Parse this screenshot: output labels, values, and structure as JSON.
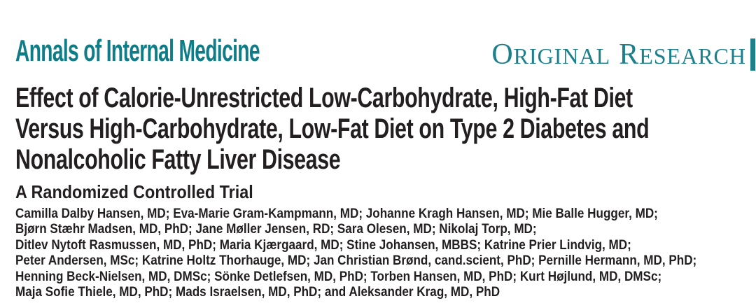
{
  "journal": {
    "name": "Annals of Internal Medicine",
    "section_label": {
      "word1_initial": "O",
      "word1_rest": "RIGINAL",
      "word2_initial": "R",
      "word2_rest": "ESEARCH"
    }
  },
  "article": {
    "title_lines": [
      "Effect of Calorie-Unrestricted Low-Carbohydrate, High-Fat Diet",
      "Versus High-Carbohydrate, Low-Fat Diet on Type 2 Diabetes and",
      "Nonalcoholic Fatty Liver Disease"
    ],
    "subtitle": "A Randomized Controlled Trial",
    "author_lines": [
      "Camilla Dalby Hansen, MD; Eva-Marie Gram-Kampmann, MD; Johanne Kragh Hansen, MD; Mie Balle Hugger, MD;",
      "Bjørn Stæhr Madsen, MD, PhD; Jane Møller Jensen, RD; Sara Olesen, MD; Nikolaj Torp, MD;",
      "Ditlev Nytoft Rasmussen, MD, PhD; Maria Kjærgaard, MD; Stine Johansen, MBBS; Katrine Prier Lindvig, MD;",
      "Peter Andersen, MSc; Katrine Holtz Thorhauge, MD; Jan Christian Brønd, cand.scient, PhD; Pernille Hermann, MD, PhD;",
      "Henning Beck-Nielsen, MD, DMSc; Sönke Detlefsen, MD, PhD; Torben Hansen, MD, PhD; Kurt Højlund, MD, DMSc;",
      "Maja Sofie Thiele, MD, PhD; Mads Israelsen, MD, PhD; and Aleksander Krag, MD, PhD"
    ]
  },
  "colors": {
    "brand_teal": "#0f7d87",
    "section_teal": "#1b7f8c",
    "text_dark": "#231f20",
    "background": "#ffffff"
  }
}
